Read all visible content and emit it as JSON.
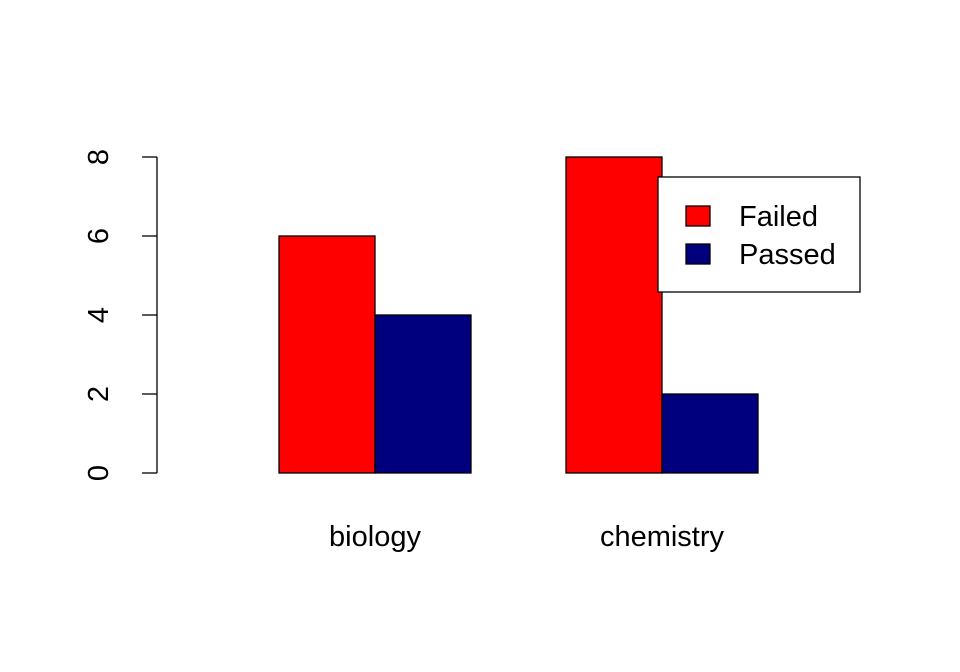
{
  "chart_data": {
    "type": "bar",
    "categories": [
      "biology",
      "chemistry"
    ],
    "series": [
      {
        "name": "Failed",
        "values": [
          6,
          8
        ],
        "color": "#ff0000"
      },
      {
        "name": "Passed",
        "values": [
          4,
          2
        ],
        "color": "#00007f"
      }
    ],
    "ylim": [
      0,
      8
    ],
    "yticks": [
      "0",
      "2",
      "4",
      "6",
      "8"
    ],
    "title": "",
    "xlabel": "",
    "ylabel": "",
    "legend_position": "top-right",
    "grid": false
  }
}
